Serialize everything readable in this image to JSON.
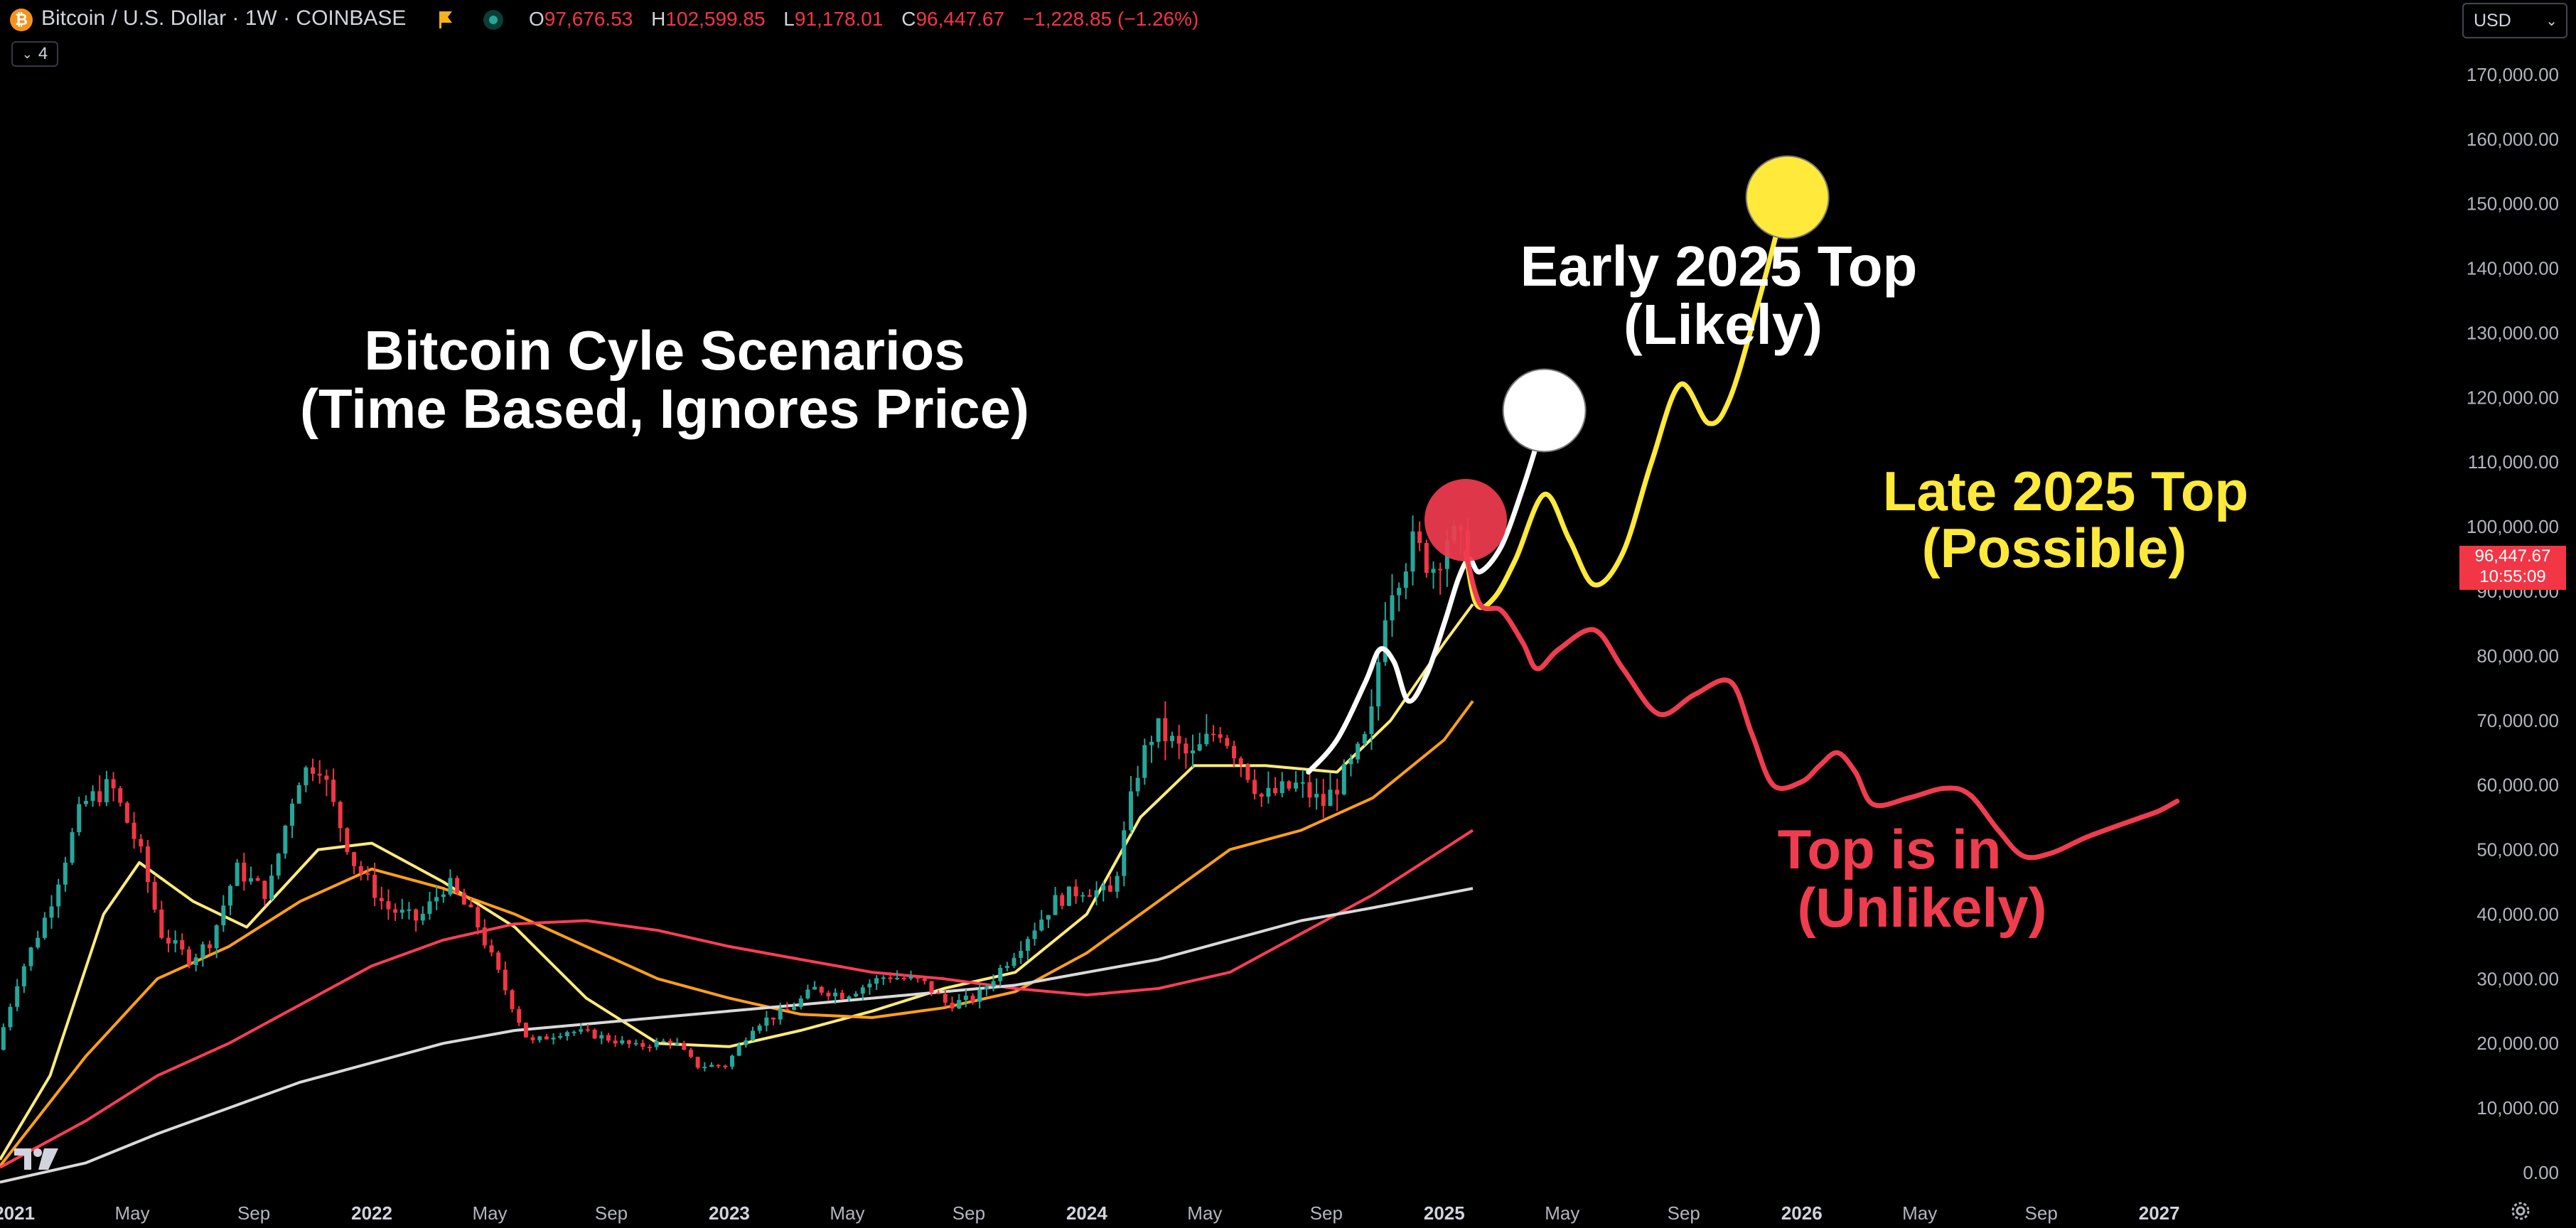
{
  "header": {
    "symbol_title": "Bitcoin / U.S. Dollar · 1W · COINBASE",
    "btc_icon": "₿",
    "ohlc": {
      "o_label": "O",
      "o_value": "97,676.53",
      "h_label": "H",
      "h_value": "102,599.85",
      "l_label": "L",
      "l_value": "91,178.01",
      "c_label": "C",
      "c_value": "96,447.67",
      "change": "−1,228.85 (−1.26%)"
    },
    "indicator_count": "4",
    "currency": "USD"
  },
  "price_tag": {
    "price": "96,447.67",
    "countdown": "10:55:09"
  },
  "colors": {
    "background": "#000000",
    "bullish": "#26a69a",
    "bearish": "#f23645",
    "ma_yellow": "#ffeb7a",
    "ma_orange": "#ff9f1a",
    "ma_red": "#ff3d57",
    "ma_gray": "#d9d9d9",
    "scenario_white": "#ffffff",
    "scenario_yellow": "#ffe93b",
    "scenario_red": "#f03c4f"
  },
  "chart_data": {
    "type": "candlestick",
    "timeframe": "1W",
    "y_axis": {
      "min": 0,
      "max": 180000,
      "ticks": [
        0,
        10000,
        20000,
        30000,
        40000,
        50000,
        60000,
        70000,
        80000,
        90000,
        100000,
        110000,
        120000,
        130000,
        140000,
        150000,
        160000,
        170000
      ],
      "tick_labels": [
        "0.00",
        "10,000.00",
        "20,000.00",
        "30,000.00",
        "40,000.00",
        "50,000.00",
        "60,000.00",
        "70,000.00",
        "80,000.00",
        "90,000.00",
        "100,000.00",
        "110,000.00",
        "120,000.00",
        "130,000.00",
        "140,000.00",
        "150,000.00",
        "160,000.00",
        "170,000.00"
      ]
    },
    "x_axis": {
      "start": 2020.96,
      "end": 2027.8,
      "ticks": [
        {
          "t": 2021.0,
          "label": "2021",
          "bold": true
        },
        {
          "t": 2021.33,
          "label": "May",
          "bold": false
        },
        {
          "t": 2021.67,
          "label": "Sep",
          "bold": false
        },
        {
          "t": 2022.0,
          "label": "2022",
          "bold": true
        },
        {
          "t": 2022.33,
          "label": "May",
          "bold": false
        },
        {
          "t": 2022.67,
          "label": "Sep",
          "bold": false
        },
        {
          "t": 2023.0,
          "label": "2023",
          "bold": true
        },
        {
          "t": 2023.33,
          "label": "May",
          "bold": false
        },
        {
          "t": 2023.67,
          "label": "Sep",
          "bold": false
        },
        {
          "t": 2024.0,
          "label": "2024",
          "bold": true
        },
        {
          "t": 2024.33,
          "label": "May",
          "bold": false
        },
        {
          "t": 2024.67,
          "label": "Sep",
          "bold": false
        },
        {
          "t": 2025.0,
          "label": "2025",
          "bold": true
        },
        {
          "t": 2025.33,
          "label": "May",
          "bold": false
        },
        {
          "t": 2025.67,
          "label": "Sep",
          "bold": false
        },
        {
          "t": 2026.0,
          "label": "2026",
          "bold": true
        },
        {
          "t": 2026.33,
          "label": "May",
          "bold": false
        },
        {
          "t": 2026.67,
          "label": "Sep",
          "bold": false
        },
        {
          "t": 2027.0,
          "label": "2027",
          "bold": true
        }
      ]
    },
    "price_keypoints": [
      [
        2020.96,
        19000
      ],
      [
        2021.02,
        30000
      ],
      [
        2021.1,
        40000
      ],
      [
        2021.2,
        57000
      ],
      [
        2021.28,
        60000
      ],
      [
        2021.36,
        50000
      ],
      [
        2021.42,
        37000
      ],
      [
        2021.5,
        33000
      ],
      [
        2021.56,
        36000
      ],
      [
        2021.63,
        47000
      ],
      [
        2021.72,
        43000
      ],
      [
        2021.8,
        61000
      ],
      [
        2021.86,
        64000
      ],
      [
        2021.9,
        57000
      ],
      [
        2021.96,
        48000
      ],
      [
        2022.05,
        41000
      ],
      [
        2022.14,
        39000
      ],
      [
        2022.22,
        45000
      ],
      [
        2022.3,
        39000
      ],
      [
        2022.37,
        30000
      ],
      [
        2022.45,
        20000
      ],
      [
        2022.55,
        22000
      ],
      [
        2022.62,
        21500
      ],
      [
        2022.75,
        19500
      ],
      [
        2022.85,
        20500
      ],
      [
        2022.92,
        16500
      ],
      [
        2023.0,
        16600
      ],
      [
        2023.08,
        23000
      ],
      [
        2023.17,
        25000
      ],
      [
        2023.25,
        28500
      ],
      [
        2023.33,
        27500
      ],
      [
        2023.45,
        30500
      ],
      [
        2023.55,
        29500
      ],
      [
        2023.62,
        26000
      ],
      [
        2023.7,
        27000
      ],
      [
        2023.82,
        35000
      ],
      [
        2023.92,
        42000
      ],
      [
        2024.0,
        44000
      ],
      [
        2024.08,
        43000
      ],
      [
        2024.15,
        62000
      ],
      [
        2024.2,
        69000
      ],
      [
        2024.3,
        64000
      ],
      [
        2024.38,
        69000
      ],
      [
        2024.45,
        63000
      ],
      [
        2024.5,
        58000
      ],
      [
        2024.6,
        60000
      ],
      [
        2024.67,
        57000
      ],
      [
        2024.75,
        63000
      ],
      [
        2024.8,
        68000
      ],
      [
        2024.85,
        90000
      ],
      [
        2024.92,
        97000
      ],
      [
        2024.98,
        94000
      ],
      [
        2025.02,
        99000
      ],
      [
        2025.06,
        96447
      ]
    ],
    "moving_averages": [
      {
        "name": "MA yellow (short)",
        "color": "#ffeb7a",
        "points": [
          [
            2020.96,
            2000
          ],
          [
            2021.1,
            15000
          ],
          [
            2021.25,
            40000
          ],
          [
            2021.35,
            48000
          ],
          [
            2021.5,
            42000
          ],
          [
            2021.65,
            38000
          ],
          [
            2021.85,
            50000
          ],
          [
            2022.0,
            51000
          ],
          [
            2022.2,
            45000
          ],
          [
            2022.4,
            38000
          ],
          [
            2022.6,
            27000
          ],
          [
            2022.8,
            20000
          ],
          [
            2023.0,
            19500
          ],
          [
            2023.2,
            22000
          ],
          [
            2023.4,
            25000
          ],
          [
            2023.6,
            28500
          ],
          [
            2023.8,
            31000
          ],
          [
            2024.0,
            40000
          ],
          [
            2024.15,
            55000
          ],
          [
            2024.3,
            63000
          ],
          [
            2024.5,
            63000
          ],
          [
            2024.7,
            62000
          ],
          [
            2024.85,
            70000
          ],
          [
            2025.0,
            82000
          ],
          [
            2025.08,
            88000
          ]
        ]
      },
      {
        "name": "MA orange (mid)",
        "color": "#ff9f1a",
        "points": [
          [
            2020.96,
            1000
          ],
          [
            2021.2,
            18000
          ],
          [
            2021.4,
            30000
          ],
          [
            2021.6,
            35000
          ],
          [
            2021.8,
            42000
          ],
          [
            2022.0,
            47000
          ],
          [
            2022.2,
            44000
          ],
          [
            2022.4,
            40000
          ],
          [
            2022.6,
            35000
          ],
          [
            2022.8,
            30000
          ],
          [
            2023.0,
            27000
          ],
          [
            2023.2,
            24500
          ],
          [
            2023.4,
            24000
          ],
          [
            2023.6,
            25500
          ],
          [
            2023.8,
            28000
          ],
          [
            2024.0,
            34000
          ],
          [
            2024.2,
            42000
          ],
          [
            2024.4,
            50000
          ],
          [
            2024.6,
            53000
          ],
          [
            2024.8,
            58000
          ],
          [
            2025.0,
            67000
          ],
          [
            2025.08,
            73000
          ]
        ]
      },
      {
        "name": "MA red (long)",
        "color": "#ff3d57",
        "points": [
          [
            2020.96,
            800
          ],
          [
            2021.2,
            8000
          ],
          [
            2021.4,
            15000
          ],
          [
            2021.6,
            20000
          ],
          [
            2021.8,
            26000
          ],
          [
            2022.0,
            32000
          ],
          [
            2022.2,
            36000
          ],
          [
            2022.4,
            38500
          ],
          [
            2022.6,
            39000
          ],
          [
            2022.8,
            37500
          ],
          [
            2023.0,
            35000
          ],
          [
            2023.2,
            33000
          ],
          [
            2023.4,
            31000
          ],
          [
            2023.6,
            30000
          ],
          [
            2023.8,
            28500
          ],
          [
            2024.0,
            27500
          ],
          [
            2024.2,
            28500
          ],
          [
            2024.4,
            31000
          ],
          [
            2024.6,
            37000
          ],
          [
            2024.8,
            43000
          ],
          [
            2025.08,
            53000
          ]
        ]
      },
      {
        "name": "MA gray (200W)",
        "color": "#d9d9d9",
        "points": [
          [
            2020.96,
            -1500
          ],
          [
            2021.2,
            1500
          ],
          [
            2021.4,
            6000
          ],
          [
            2021.6,
            10000
          ],
          [
            2021.8,
            14000
          ],
          [
            2022.0,
            17000
          ],
          [
            2022.2,
            20000
          ],
          [
            2022.4,
            22000
          ],
          [
            2022.6,
            23000
          ],
          [
            2022.8,
            24000
          ],
          [
            2023.0,
            25000
          ],
          [
            2023.2,
            26000
          ],
          [
            2023.4,
            27000
          ],
          [
            2023.6,
            28000
          ],
          [
            2023.8,
            29000
          ],
          [
            2024.0,
            31000
          ],
          [
            2024.2,
            33000
          ],
          [
            2024.4,
            36000
          ],
          [
            2024.6,
            39000
          ],
          [
            2024.8,
            41000
          ],
          [
            2025.08,
            44000
          ]
        ]
      }
    ],
    "scenarios": [
      {
        "name": "Early 2025 Top",
        "color": "#ffffff",
        "points": [
          [
            2024.62,
            62000
          ],
          [
            2024.7,
            67000
          ],
          [
            2024.78,
            76000
          ],
          [
            2024.82,
            81000
          ],
          [
            2024.86,
            79000
          ],
          [
            2024.9,
            73000
          ],
          [
            2024.95,
            77000
          ],
          [
            2025.0,
            85000
          ],
          [
            2025.04,
            92000
          ],
          [
            2025.07,
            95000
          ],
          [
            2025.1,
            93000
          ],
          [
            2025.16,
            97000
          ],
          [
            2025.22,
            106000
          ],
          [
            2025.26,
            113000
          ],
          [
            2025.28,
            117000
          ]
        ],
        "marker": {
          "t": 2025.28,
          "price": 118000,
          "color": "#ffffff"
        }
      },
      {
        "name": "Late 2025 Top",
        "color": "#ffe93b",
        "points": [
          [
            2025.06,
            96000
          ],
          [
            2025.09,
            88000
          ],
          [
            2025.14,
            89000
          ],
          [
            2025.2,
            95000
          ],
          [
            2025.28,
            105000
          ],
          [
            2025.35,
            98000
          ],
          [
            2025.42,
            91000
          ],
          [
            2025.5,
            96000
          ],
          [
            2025.58,
            110000
          ],
          [
            2025.66,
            122000
          ],
          [
            2025.74,
            116000
          ],
          [
            2025.8,
            120000
          ],
          [
            2025.88,
            135000
          ],
          [
            2025.96,
            152000
          ]
        ],
        "marker": {
          "t": 2025.96,
          "price": 151000,
          "color": "#ffe93b"
        }
      },
      {
        "name": "Top is in",
        "color": "#f03c4f",
        "points": [
          [
            2025.06,
            96000
          ],
          [
            2025.1,
            88000
          ],
          [
            2025.16,
            87000
          ],
          [
            2025.22,
            82000
          ],
          [
            2025.26,
            78000
          ],
          [
            2025.32,
            81000
          ],
          [
            2025.42,
            84000
          ],
          [
            2025.5,
            78000
          ],
          [
            2025.6,
            71000
          ],
          [
            2025.7,
            74000
          ],
          [
            2025.8,
            76000
          ],
          [
            2025.86,
            68000
          ],
          [
            2025.92,
            60000
          ],
          [
            2026.0,
            60500
          ],
          [
            2026.05,
            63000
          ],
          [
            2026.1,
            65000
          ],
          [
            2026.15,
            62000
          ],
          [
            2026.2,
            57000
          ],
          [
            2026.3,
            58000
          ],
          [
            2026.4,
            59500
          ],
          [
            2026.47,
            58500
          ],
          [
            2026.55,
            53000
          ],
          [
            2026.62,
            49000
          ],
          [
            2026.7,
            49500
          ],
          [
            2026.8,
            52000
          ],
          [
            2026.95,
            55000
          ],
          [
            2027.0,
            56000
          ],
          [
            2027.05,
            57500
          ]
        ],
        "marker": {
          "t": 2025.06,
          "price": 101000,
          "color": "#f03c4f"
        }
      }
    ],
    "annotations": [
      {
        "id": "title",
        "lines": [
          "Bitcoin Cyle Scenarios",
          "(Time Based, Ignores Price)"
        ],
        "color": "#ffffff"
      },
      {
        "id": "early",
        "lines": [
          "Early 2025 Top",
          "(Likely)"
        ],
        "color": "#ffffff"
      },
      {
        "id": "late",
        "lines": [
          "Late 2025 Top",
          "(Possible)"
        ],
        "color": "#ffe93b"
      },
      {
        "id": "topin",
        "lines": [
          "Top is in",
          "(Unlikely)"
        ],
        "color": "#f03c4f"
      }
    ]
  }
}
